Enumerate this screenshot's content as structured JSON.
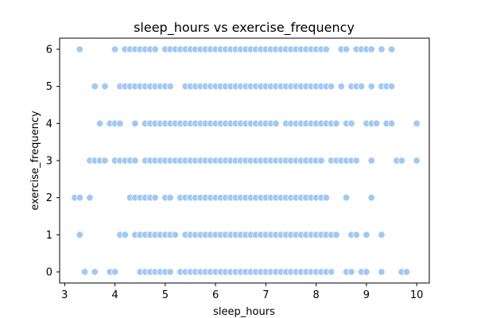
{
  "chart_data": {
    "type": "scatter",
    "title": "sleep_hours vs exercise_frequency",
    "xlabel": "sleep_hours",
    "ylabel": "exercise_frequency",
    "xlim": [
      2.9,
      10.25
    ],
    "ylim": [
      -0.3,
      6.3
    ],
    "x_ticks": [
      "3",
      "4",
      "5",
      "6",
      "7",
      "8",
      "9",
      "10"
    ],
    "y_ticks": [
      "0",
      "1",
      "2",
      "3",
      "4",
      "5",
      "6"
    ],
    "grid": false,
    "point_color": "#a1c9f4",
    "point_edge_color": "#ffffff",
    "points": [
      {
        "y": 6,
        "x": [
          3.3,
          4.0,
          4.2,
          4.3,
          4.4,
          4.5,
          4.6,
          4.7,
          4.8,
          5.0,
          5.1,
          5.2,
          5.3,
          5.4,
          5.5,
          5.6,
          5.7,
          5.8,
          5.9,
          6.0,
          6.1,
          6.2,
          6.3,
          6.4,
          6.5,
          6.6,
          6.7,
          6.8,
          6.9,
          7.0,
          7.1,
          7.2,
          7.3,
          7.4,
          7.5,
          7.6,
          7.7,
          7.8,
          7.9,
          8.0,
          8.1,
          8.2,
          8.5,
          8.6,
          8.8,
          8.9,
          9.0,
          9.1,
          9.3,
          9.5
        ]
      },
      {
        "y": 5,
        "x": [
          3.6,
          3.8,
          4.1,
          4.2,
          4.3,
          4.4,
          4.5,
          4.6,
          4.7,
          4.8,
          4.9,
          5.0,
          5.1,
          5.4,
          5.5,
          5.6,
          5.7,
          5.8,
          5.9,
          6.0,
          6.1,
          6.2,
          6.3,
          6.4,
          6.5,
          6.6,
          6.7,
          6.8,
          6.9,
          7.0,
          7.1,
          7.2,
          7.3,
          7.4,
          7.5,
          7.6,
          7.7,
          7.8,
          7.9,
          8.0,
          8.1,
          8.2,
          8.3,
          8.5,
          8.7,
          8.8,
          8.9,
          9.1,
          9.3,
          9.4,
          9.5
        ]
      },
      {
        "y": 4,
        "x": [
          3.7,
          3.9,
          4.0,
          4.1,
          4.4,
          4.6,
          4.7,
          4.8,
          4.9,
          5.0,
          5.1,
          5.2,
          5.3,
          5.4,
          5.5,
          5.6,
          5.7,
          5.8,
          5.9,
          6.0,
          6.1,
          6.2,
          6.3,
          6.4,
          6.5,
          6.6,
          6.7,
          6.8,
          6.9,
          7.0,
          7.1,
          7.2,
          7.4,
          7.5,
          7.6,
          7.7,
          7.8,
          7.9,
          8.0,
          8.1,
          8.2,
          8.3,
          8.4,
          8.6,
          8.7,
          9.0,
          9.1,
          9.2,
          9.4,
          9.5,
          10.0
        ]
      },
      {
        "y": 3,
        "x": [
          3.5,
          3.6,
          3.7,
          3.8,
          4.0,
          4.1,
          4.2,
          4.3,
          4.4,
          4.6,
          4.7,
          4.8,
          4.9,
          5.0,
          5.1,
          5.2,
          5.3,
          5.4,
          5.5,
          5.6,
          5.7,
          5.8,
          5.9,
          6.0,
          6.1,
          6.2,
          6.3,
          6.4,
          6.5,
          6.6,
          6.7,
          6.8,
          6.9,
          7.0,
          7.1,
          7.2,
          7.3,
          7.4,
          7.5,
          7.6,
          7.7,
          7.8,
          7.9,
          8.0,
          8.1,
          8.3,
          8.4,
          8.5,
          8.6,
          8.7,
          8.8,
          9.1,
          9.6,
          9.7,
          10.0
        ]
      },
      {
        "y": 2,
        "x": [
          3.2,
          3.3,
          3.5,
          4.3,
          4.4,
          4.5,
          4.6,
          4.7,
          4.8,
          5.0,
          5.1,
          5.3,
          5.4,
          5.5,
          5.6,
          5.7,
          5.8,
          5.9,
          6.0,
          6.1,
          6.2,
          6.3,
          6.4,
          6.5,
          6.6,
          6.7,
          6.8,
          6.9,
          7.0,
          7.1,
          7.2,
          7.3,
          7.4,
          7.5,
          7.6,
          7.7,
          7.8,
          7.9,
          8.0,
          8.1,
          8.2,
          8.6,
          9.1
        ]
      },
      {
        "y": 1,
        "x": [
          3.3,
          4.1,
          4.2,
          4.4,
          4.5,
          4.6,
          4.7,
          4.8,
          4.9,
          5.0,
          5.1,
          5.2,
          5.4,
          5.5,
          5.6,
          5.7,
          5.8,
          5.9,
          6.0,
          6.1,
          6.2,
          6.3,
          6.4,
          6.5,
          6.6,
          6.7,
          6.8,
          6.9,
          7.0,
          7.1,
          7.2,
          7.3,
          7.4,
          7.5,
          7.6,
          7.7,
          7.8,
          7.9,
          8.0,
          8.1,
          8.2,
          8.3,
          8.4,
          8.7,
          8.8,
          9.0,
          9.3
        ]
      },
      {
        "y": 0,
        "x": [
          3.4,
          3.6,
          3.9,
          4.0,
          4.5,
          4.6,
          4.7,
          4.8,
          4.9,
          5.0,
          5.1,
          5.3,
          5.4,
          5.5,
          5.6,
          5.7,
          5.8,
          5.9,
          6.0,
          6.1,
          6.2,
          6.3,
          6.4,
          6.5,
          6.6,
          6.7,
          6.8,
          6.9,
          7.0,
          7.1,
          7.2,
          7.3,
          7.4,
          7.5,
          7.6,
          7.7,
          7.8,
          7.9,
          8.0,
          8.1,
          8.2,
          8.3,
          8.6,
          8.7,
          8.9,
          9.0,
          9.3,
          9.7,
          9.8
        ]
      }
    ]
  }
}
